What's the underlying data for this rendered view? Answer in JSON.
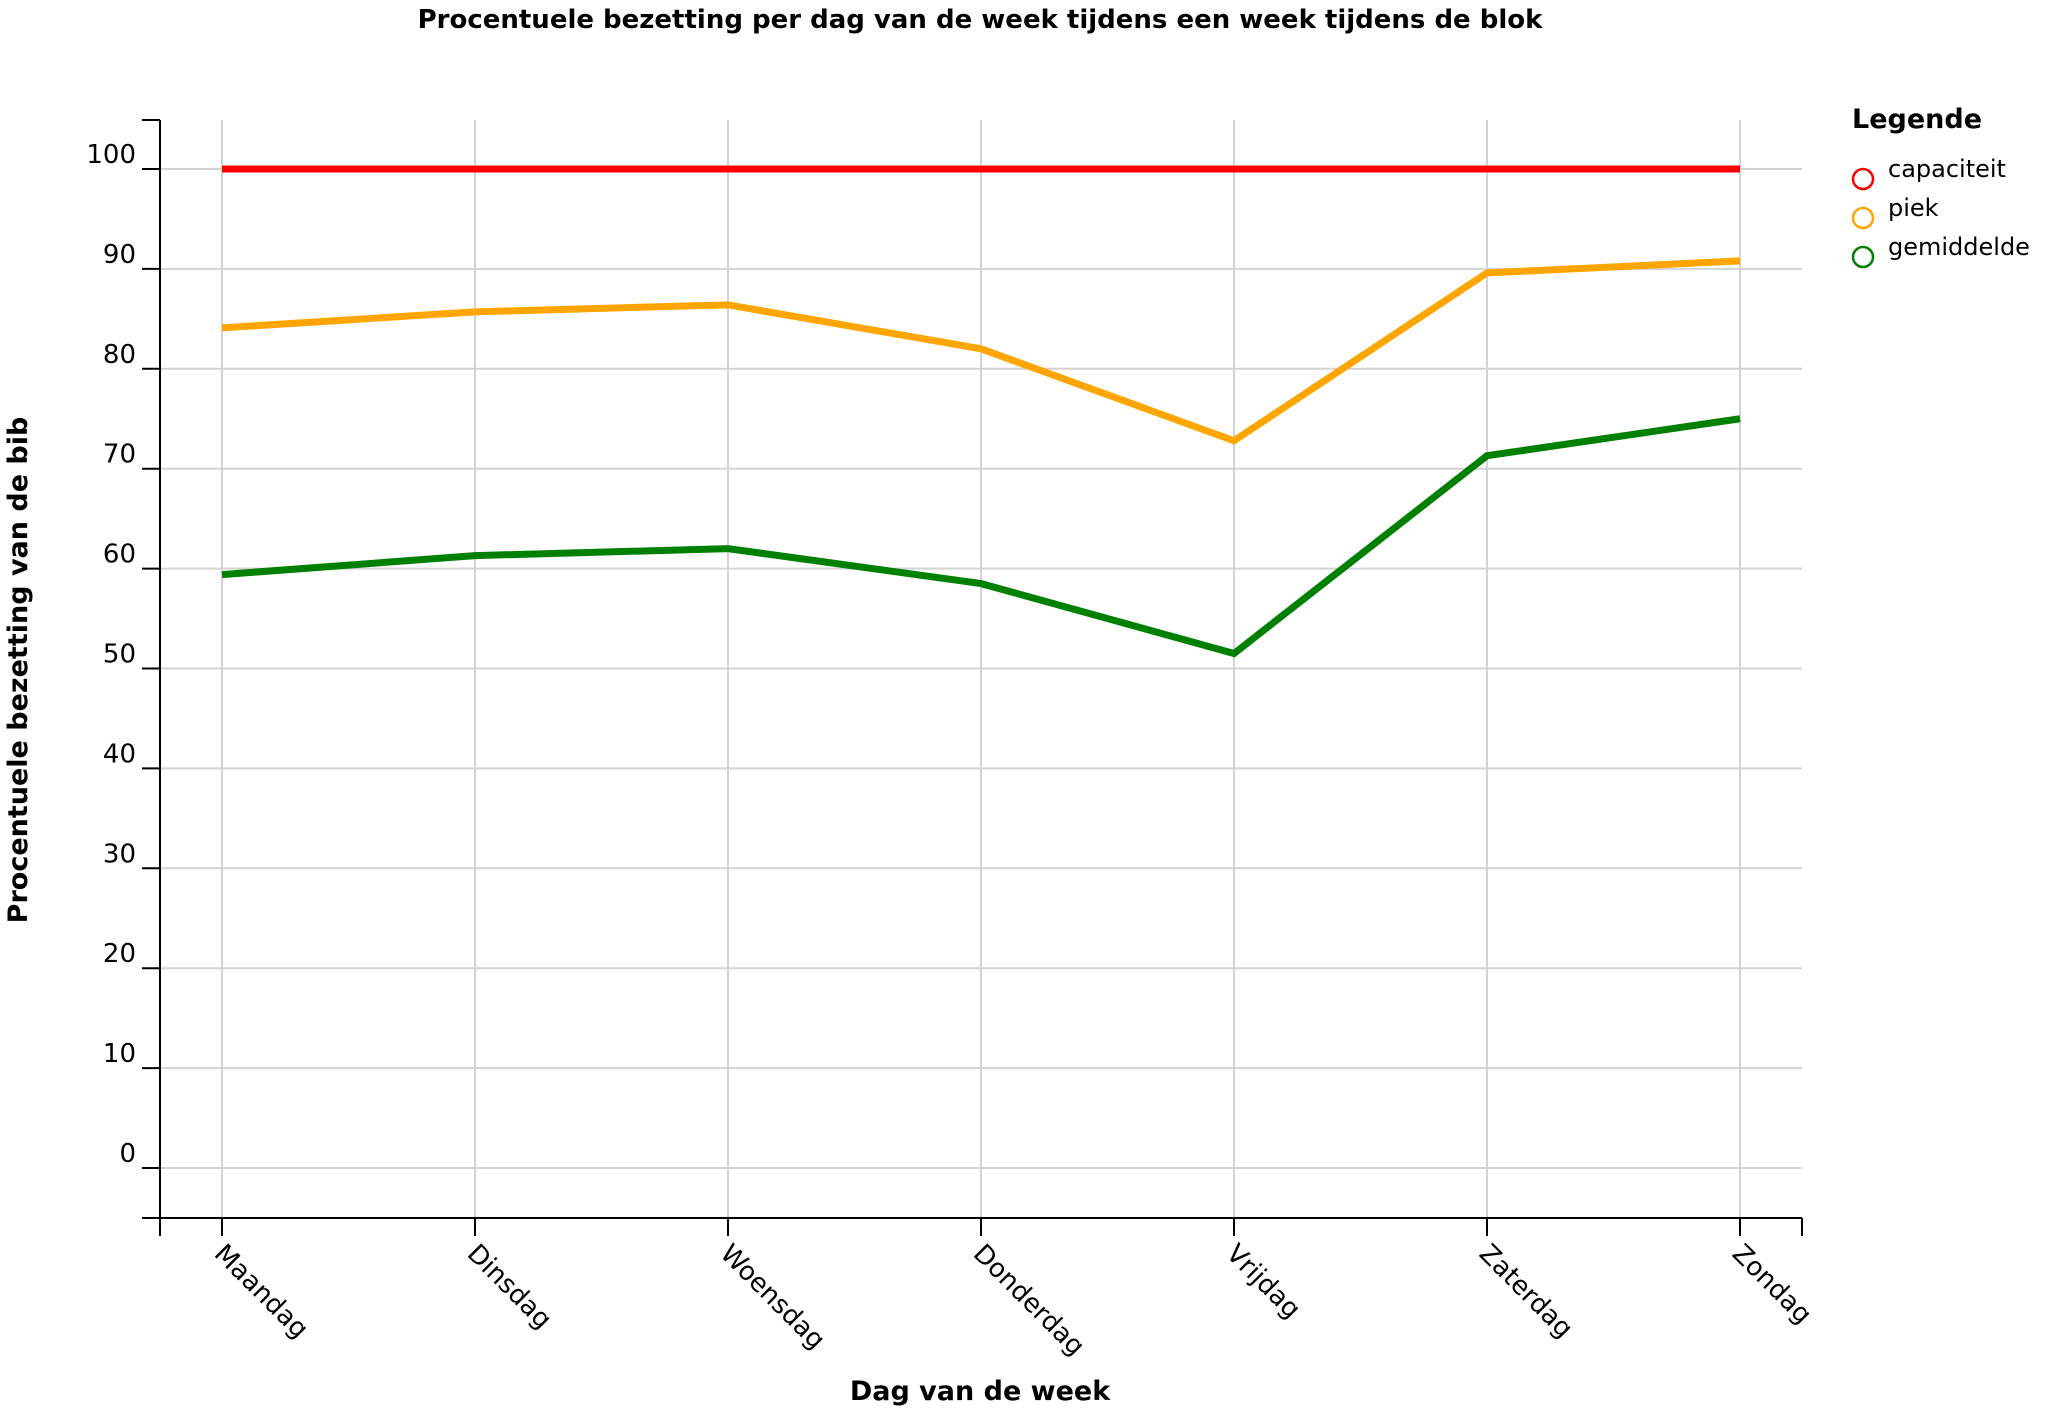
{
  "chart_data": {
    "type": "line",
    "title": "Procentuele bezetting per dag van de week tijdens een week tijdens de blok",
    "xlabel": "Dag van de week",
    "ylabel": "Procentuele bezetting van de bib",
    "categories": [
      "Maandag",
      "Dinsdag",
      "Woensdag",
      "Donderdag",
      "Vrijdag",
      "Zaterdag",
      "Zondag"
    ],
    "ylim": [
      -5,
      105
    ],
    "yticks": [
      0,
      10,
      20,
      30,
      40,
      50,
      60,
      70,
      80,
      90,
      100
    ],
    "grid": true,
    "legend": {
      "title": "Legende",
      "position": "right"
    },
    "series": [
      {
        "name": "capaciteit",
        "color": "#ff0000",
        "values": [
          100,
          100,
          100,
          100,
          100,
          100,
          100
        ]
      },
      {
        "name": "piek",
        "color": "#ffa500",
        "values": [
          84.1,
          85.7,
          86.4,
          82.0,
          72.8,
          89.6,
          90.8
        ]
      },
      {
        "name": "gemiddelde",
        "color": "#008000",
        "values": [
          59.4,
          61.3,
          62.0,
          58.5,
          51.5,
          71.3,
          75.0
        ]
      }
    ]
  }
}
